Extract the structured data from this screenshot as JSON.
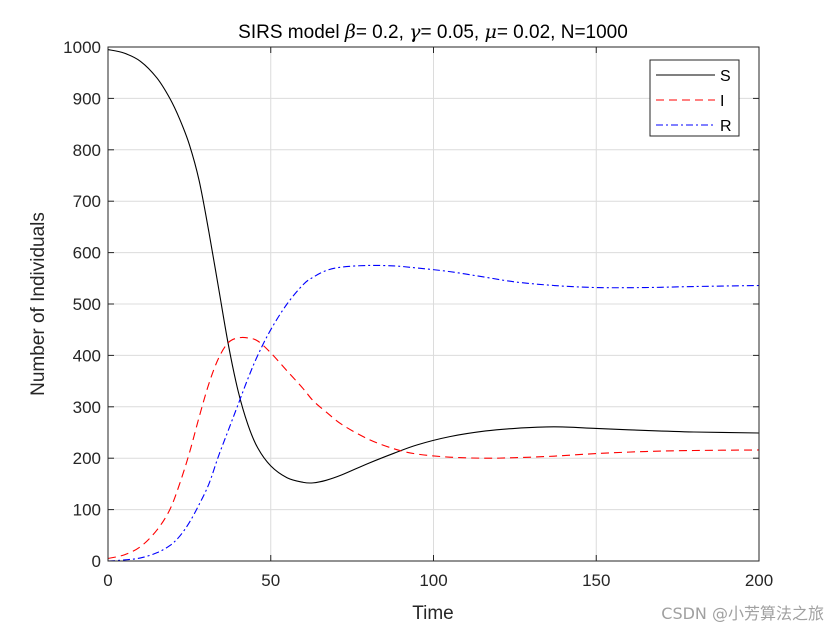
{
  "chart_data": {
    "type": "line",
    "title": "SIRS model  β= 0.2, γ= 0.05, μ= 0.02, N=1000",
    "title_parts": {
      "prefix": "SIRS model  ",
      "beta_symbol": "β",
      "beta_text": "= 0.2, ",
      "gamma_symbol": "γ",
      "gamma_text": "= 0.05, ",
      "mu_symbol": "μ",
      "mu_text": "= 0.02, N=1000"
    },
    "xlabel": "Time",
    "ylabel": "Number of Individuals",
    "xlim": [
      0,
      200
    ],
    "ylim": [
      0,
      1000
    ],
    "xticks": [
      0,
      50,
      100,
      150,
      200
    ],
    "yticks": [
      0,
      100,
      200,
      300,
      400,
      500,
      600,
      700,
      800,
      900,
      1000
    ],
    "grid": true,
    "legend_position": "northeast",
    "x": [
      0,
      5,
      10,
      15,
      19,
      22,
      25,
      28,
      31,
      34,
      37,
      40,
      43,
      46,
      50,
      55,
      60,
      63,
      67,
      72,
      80,
      88,
      95,
      105,
      116,
      125,
      137,
      150,
      165,
      180,
      200
    ],
    "series": [
      {
        "name": "S",
        "color": "#000000",
        "dash": "solid",
        "values": [
          995,
          988,
          972,
          940,
          900,
          860,
          810,
          740,
          640,
          530,
          420,
          330,
          265,
          220,
          185,
          162,
          153,
          152,
          157,
          168,
          190,
          210,
          226,
          242,
          253,
          258,
          261,
          258,
          254,
          251,
          249
        ]
      },
      {
        "name": "I",
        "color": "#ff0000",
        "dash": "dashed",
        "values": [
          5,
          12,
          28,
          60,
          100,
          150,
          210,
          280,
          345,
          395,
          425,
          434,
          434,
          428,
          405,
          370,
          335,
          312,
          290,
          265,
          237,
          218,
          208,
          202,
          200,
          201,
          204,
          209,
          213,
          215,
          216
        ]
      },
      {
        "name": "R",
        "color": "#0000ff",
        "dash": "dashdot",
        "values": [
          0,
          2,
          6,
          16,
          30,
          48,
          75,
          110,
          150,
          205,
          255,
          305,
          355,
          400,
          450,
          500,
          538,
          552,
          565,
          572,
          575,
          574,
          570,
          563,
          552,
          543,
          536,
          532,
          532,
          534,
          536
        ]
      }
    ]
  },
  "watermark": "CSDN @小芳算法之旅"
}
